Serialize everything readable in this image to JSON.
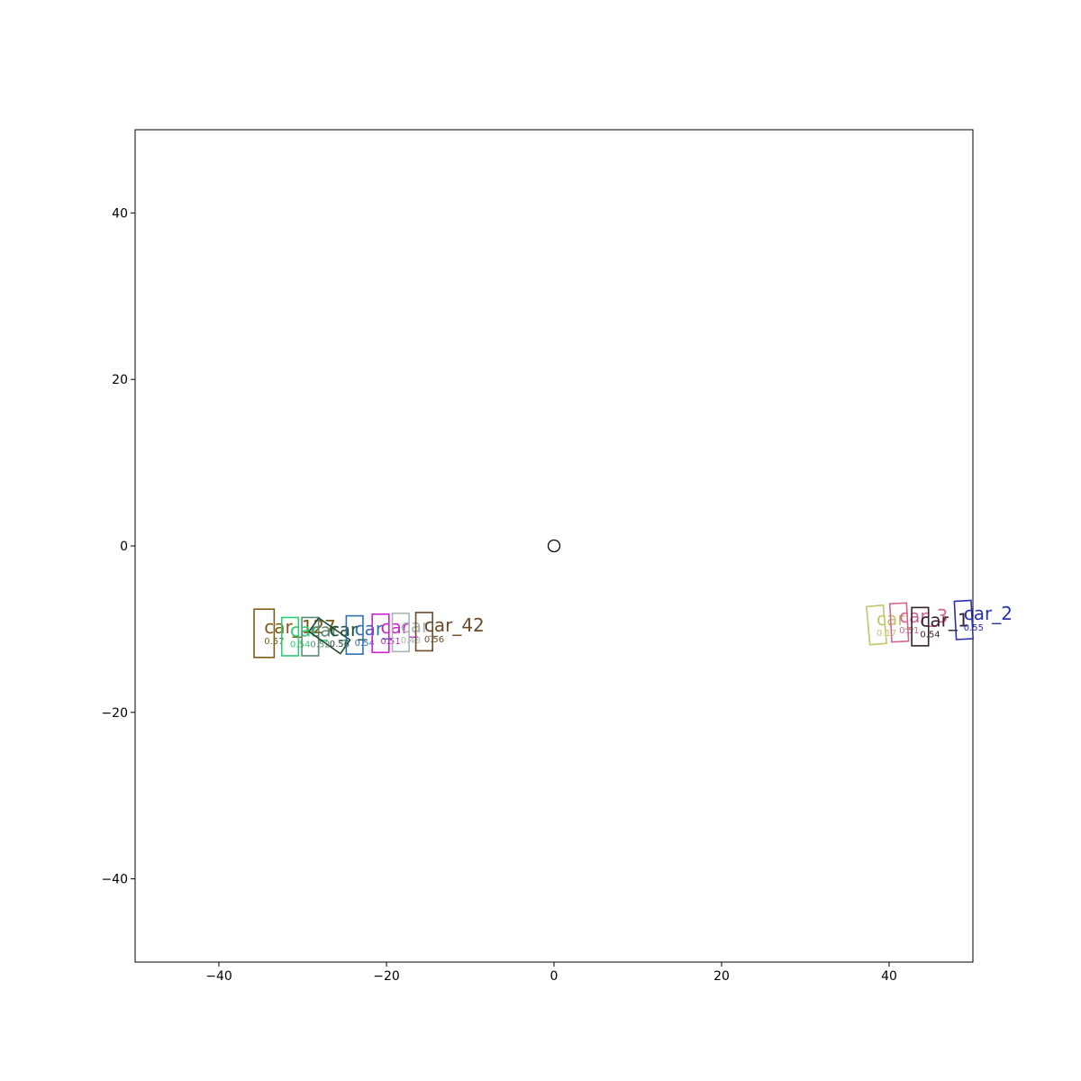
{
  "chart_data": {
    "type": "scatter",
    "title": "",
    "xlabel": "",
    "ylabel": "",
    "xlim": [
      -50,
      50
    ],
    "ylim": [
      -50,
      50
    ],
    "xticks": [
      -40,
      -20,
      0,
      20,
      40
    ],
    "yticks": [
      -40,
      -20,
      0,
      20,
      40
    ],
    "grid": false,
    "ego": {
      "x": 0,
      "y": 0,
      "marker": "circle",
      "color": "#000000"
    },
    "objects": [
      {
        "label": "car_127",
        "score": "0.57",
        "x": -34.6,
        "y": -10.5,
        "w": 2.4,
        "h": 5.8,
        "angle": 0,
        "color": "#7d5c17"
      },
      {
        "label": "car_",
        "score": "0.54",
        "x": -31.5,
        "y": -10.9,
        "w": 2.0,
        "h": 4.6,
        "angle": 0,
        "color": "#2ecc71"
      },
      {
        "label": "car_",
        "score": "0.52",
        "x": -29.1,
        "y": -10.9,
        "w": 2.0,
        "h": 4.6,
        "angle": 0,
        "color": "#5d8a7a"
      },
      {
        "label": "car_",
        "score": "0.56",
        "x": -26.8,
        "y": -10.8,
        "w": 2.0,
        "h": 4.6,
        "angle": 55,
        "color": "#1f4d2e"
      },
      {
        "label": "car_",
        "score": "0.54",
        "x": -23.8,
        "y": -10.7,
        "w": 2.0,
        "h": 4.6,
        "angle": 0,
        "color": "#2f6fb0"
      },
      {
        "label": "car_",
        "score": "0.51",
        "x": -20.7,
        "y": -10.5,
        "w": 2.0,
        "h": 4.6,
        "angle": 0,
        "color": "#cc22cc"
      },
      {
        "label": "car_",
        "score": "0.48",
        "x": -18.3,
        "y": -10.4,
        "w": 2.0,
        "h": 4.6,
        "angle": 0,
        "color": "#a8b5b0"
      },
      {
        "label": "car_42",
        "score": "0.56",
        "x": -15.5,
        "y": -10.3,
        "w": 2.0,
        "h": 4.6,
        "angle": 0,
        "color": "#6b4a2a"
      },
      {
        "label": "car_",
        "score": "0.17",
        "x": 38.5,
        "y": -9.5,
        "w": 2.0,
        "h": 4.6,
        "angle": 5,
        "color": "#c2c46e"
      },
      {
        "label": "car_3",
        "score": "0.51",
        "x": 41.2,
        "y": -9.2,
        "w": 2.0,
        "h": 4.6,
        "angle": 3,
        "color": "#d6648c"
      },
      {
        "label": "car_1",
        "score": "0.54",
        "x": 43.7,
        "y": -9.7,
        "w": 2.0,
        "h": 4.6,
        "angle": 0,
        "color": "#3a2030"
      },
      {
        "label": "car_2",
        "score": "0.55",
        "x": 48.9,
        "y": -8.9,
        "w": 2.0,
        "h": 4.6,
        "angle": 3,
        "color": "#2833b0"
      }
    ]
  }
}
